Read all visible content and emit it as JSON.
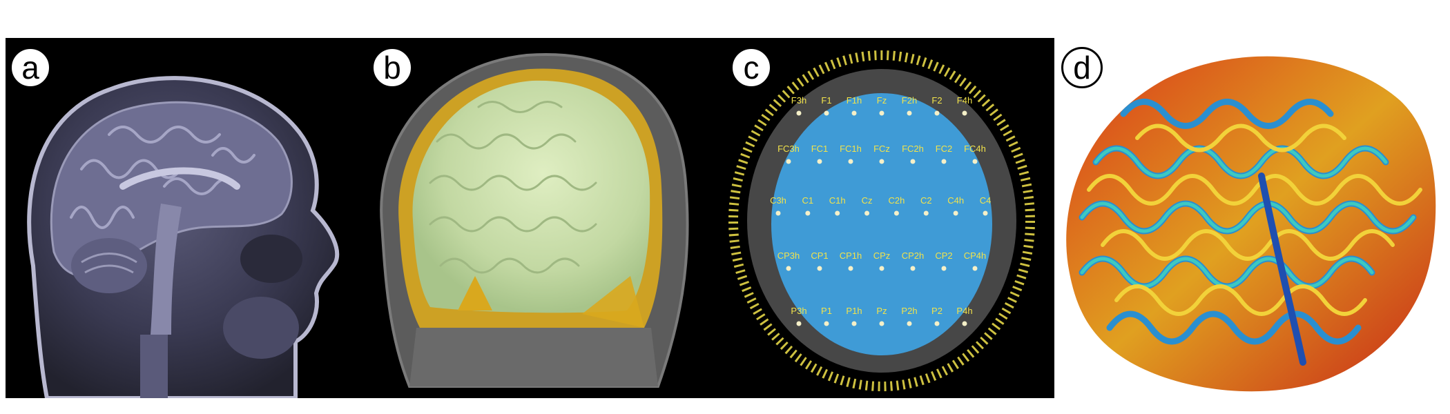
{
  "panels": [
    {
      "label": "a",
      "content": "sagittal-mri-slice"
    },
    {
      "label": "b",
      "content": "head-model-layers"
    },
    {
      "label": "c",
      "content": "eeg-electrode-montage"
    },
    {
      "label": "d",
      "content": "cortical-surface-colormap"
    }
  ],
  "electrodes": {
    "row1": [
      "F3h",
      "F1",
      "F1h",
      "Fz",
      "F2h",
      "F2",
      "F4h"
    ],
    "row2": [
      "FC3h",
      "FC1",
      "FC1h",
      "FCz",
      "FC2h",
      "FC2",
      "FC4h"
    ],
    "row3": [
      "C3h",
      "C1",
      "C1h",
      "Cz",
      "C2h",
      "C2",
      "C4h",
      "C4"
    ],
    "row4": [
      "CP3h",
      "CP1",
      "CP1h",
      "CPz",
      "CP2h",
      "CP2",
      "CP4h"
    ],
    "row5": [
      "P3h",
      "P1",
      "P1h",
      "Pz",
      "P2h",
      "P2",
      "P4h"
    ]
  },
  "colors": {
    "panel_bg": "#000000",
    "mri_tint": "#9a9ab8",
    "brain_green": "#c9dca8",
    "csf_yellow": "#d9a81e",
    "scalp_gray": "#6b6b6b",
    "cap_blue": "#3f9bd6",
    "electrode_label": "#f2e34b"
  }
}
